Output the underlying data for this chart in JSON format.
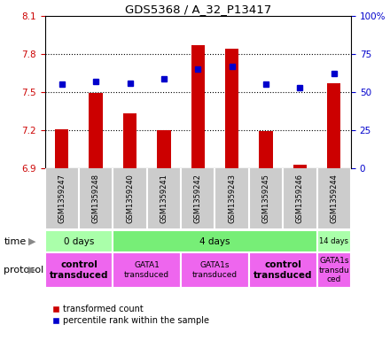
{
  "title": "GDS5368 / A_32_P13417",
  "samples": [
    "GSM1359247",
    "GSM1359248",
    "GSM1359240",
    "GSM1359241",
    "GSM1359242",
    "GSM1359243",
    "GSM1359245",
    "GSM1359246",
    "GSM1359244"
  ],
  "red_values": [
    7.21,
    7.49,
    7.33,
    7.2,
    7.87,
    7.84,
    7.19,
    6.93,
    7.57
  ],
  "blue_values": [
    55,
    57,
    56,
    59,
    65,
    67,
    55,
    53,
    62
  ],
  "ylim": [
    6.9,
    8.1
  ],
  "yticks_left": [
    6.9,
    7.2,
    7.5,
    7.8,
    8.1
  ],
  "yticks_right": [
    0,
    25,
    50,
    75,
    100
  ],
  "ylabel_left_color": "#cc0000",
  "ylabel_right_color": "#0000cc",
  "bar_color": "#cc0000",
  "dot_color": "#0000cc",
  "grid_dotted_color": "#000000",
  "time_groups": [
    {
      "label": "0 days",
      "start": 0,
      "end": 2,
      "color": "#aaffaa"
    },
    {
      "label": "4 days",
      "start": 2,
      "end": 8,
      "color": "#77ee77"
    },
    {
      "label": "14 days",
      "start": 8,
      "end": 9,
      "color": "#aaffaa"
    }
  ],
  "protocol_groups": [
    {
      "label": "control\ntransduced",
      "start": 0,
      "end": 2,
      "color": "#ee66ee",
      "bold": true
    },
    {
      "label": "GATA1\ntransduced",
      "start": 2,
      "end": 4,
      "color": "#ee66ee",
      "bold": false
    },
    {
      "label": "GATA1s\ntransduced",
      "start": 4,
      "end": 6,
      "color": "#ee66ee",
      "bold": false
    },
    {
      "label": "control\ntransduced",
      "start": 6,
      "end": 8,
      "color": "#ee66ee",
      "bold": true
    },
    {
      "label": "GATA1s\ntransdu\nced",
      "start": 8,
      "end": 9,
      "color": "#ee66ee",
      "bold": false
    }
  ],
  "background_color": "#ffffff",
  "sample_box_color": "#cccccc"
}
